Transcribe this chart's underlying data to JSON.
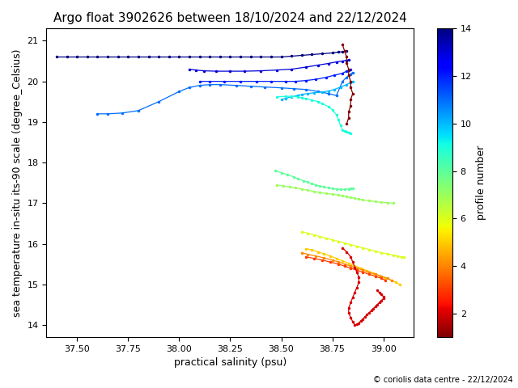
{
  "title": "Argo float 3902626 between 18/10/2024 and 22/12/2024",
  "xlabel": "practical salinity (psu)",
  "ylabel": "sea temperature in-situ its-90 scale (degree_Celsius)",
  "cbar_label": "profile number",
  "xlim": [
    37.35,
    39.15
  ],
  "ylim": [
    13.7,
    21.3
  ],
  "xticks": [
    37.5,
    37.75,
    38.0,
    38.25,
    38.5,
    38.75,
    39.0
  ],
  "yticks": [
    14,
    15,
    16,
    17,
    18,
    19,
    20,
    21
  ],
  "cbar_ticks": [
    2,
    4,
    6,
    8,
    10,
    12,
    14
  ],
  "clim": [
    1,
    14
  ],
  "cmap": "jet_r",
  "copyright": "© coriolis data centre - 22/12/2024",
  "profiles": [
    {
      "num": 14,
      "sal": [
        37.4,
        37.45,
        37.5,
        37.55,
        37.6,
        37.65,
        37.7,
        37.75,
        37.8,
        37.85,
        37.9,
        37.95,
        38.0,
        38.05,
        38.1,
        38.15,
        38.2,
        38.25,
        38.3,
        38.35,
        38.4,
        38.45,
        38.5,
        38.55,
        38.6,
        38.65,
        38.7,
        38.75,
        38.78,
        38.8,
        38.82
      ],
      "temp": [
        20.6,
        20.6,
        20.6,
        20.6,
        20.6,
        20.6,
        20.6,
        20.6,
        20.6,
        20.6,
        20.6,
        20.6,
        20.6,
        20.6,
        20.6,
        20.6,
        20.6,
        20.6,
        20.6,
        20.6,
        20.6,
        20.6,
        20.6,
        20.62,
        20.64,
        20.66,
        20.68,
        20.7,
        20.72,
        20.73,
        20.74
      ]
    },
    {
      "num": 13,
      "sal": [
        38.05,
        38.08,
        38.12,
        38.18,
        38.25,
        38.32,
        38.4,
        38.48,
        38.55,
        38.62,
        38.68,
        38.73,
        38.77,
        38.8,
        38.82,
        38.83
      ],
      "temp": [
        20.3,
        20.28,
        20.26,
        20.25,
        20.25,
        20.25,
        20.26,
        20.28,
        20.3,
        20.35,
        20.4,
        20.44,
        20.48,
        20.5,
        20.52,
        20.53
      ]
    },
    {
      "num": 12,
      "sal": [
        38.1,
        38.15,
        38.22,
        38.3,
        38.38,
        38.45,
        38.52,
        38.57,
        38.62,
        38.67,
        38.72,
        38.76,
        38.8,
        38.82,
        38.83,
        38.84
      ],
      "temp": [
        20.0,
        20.0,
        20.0,
        20.0,
        20.0,
        20.0,
        20.0,
        20.0,
        20.02,
        20.05,
        20.1,
        20.15,
        20.2,
        20.25,
        20.28,
        20.3
      ]
    },
    {
      "num": 11,
      "sal": [
        37.6,
        37.65,
        37.72,
        37.8,
        37.9,
        38.0,
        38.05,
        38.1,
        38.15,
        38.2,
        38.28,
        38.35,
        38.42,
        38.5,
        38.56,
        38.62,
        38.68,
        38.73,
        38.77,
        38.8,
        38.82,
        38.84,
        38.85
      ],
      "temp": [
        19.2,
        19.2,
        19.22,
        19.28,
        19.5,
        19.75,
        19.85,
        19.9,
        19.92,
        19.92,
        19.9,
        19.88,
        19.86,
        19.84,
        19.82,
        19.8,
        19.75,
        19.7,
        19.65,
        20.0,
        20.1,
        20.18,
        20.22
      ]
    },
    {
      "num": 10,
      "sal": [
        38.5,
        38.52,
        38.55,
        38.58,
        38.6,
        38.63,
        38.66,
        38.7,
        38.73,
        38.76,
        38.79,
        38.82,
        38.84,
        38.85
      ],
      "temp": [
        19.55,
        19.58,
        19.62,
        19.65,
        19.68,
        19.7,
        19.72,
        19.74,
        19.76,
        19.8,
        19.86,
        19.92,
        19.97,
        20.0
      ]
    },
    {
      "num": 9,
      "sal": [
        38.48,
        38.52,
        38.55,
        38.58,
        38.6,
        38.62,
        38.65,
        38.68,
        38.7,
        38.73,
        38.75,
        38.77,
        38.78,
        38.79,
        38.8,
        38.81,
        38.82,
        38.83,
        38.84
      ],
      "temp": [
        19.62,
        19.63,
        19.63,
        19.62,
        19.6,
        19.58,
        19.54,
        19.5,
        19.45,
        19.38,
        19.3,
        19.18,
        19.05,
        18.92,
        18.8,
        18.78,
        18.76,
        18.74,
        18.72
      ]
    },
    {
      "num": 8,
      "sal": [
        38.47,
        38.5,
        38.53,
        38.56,
        38.58,
        38.61,
        38.63,
        38.65,
        38.67,
        38.69,
        38.71,
        38.73,
        38.75,
        38.77,
        38.79,
        38.81,
        38.83,
        38.84,
        38.85
      ],
      "temp": [
        17.8,
        17.75,
        17.7,
        17.65,
        17.6,
        17.55,
        17.52,
        17.48,
        17.45,
        17.42,
        17.4,
        17.38,
        17.36,
        17.35,
        17.34,
        17.34,
        17.35,
        17.36,
        17.37
      ]
    },
    {
      "num": 7,
      "sal": [
        38.48,
        38.51,
        38.54,
        38.57,
        38.6,
        38.63,
        38.66,
        38.69,
        38.72,
        38.75,
        38.78,
        38.8,
        38.82,
        38.84,
        38.86,
        38.88,
        38.9,
        38.93,
        38.96,
        38.99,
        39.02,
        39.05
      ],
      "temp": [
        17.45,
        17.42,
        17.4,
        17.38,
        17.35,
        17.32,
        17.29,
        17.26,
        17.24,
        17.22,
        17.2,
        17.18,
        17.16,
        17.14,
        17.12,
        17.1,
        17.08,
        17.06,
        17.04,
        17.02,
        17.01,
        17.0
      ]
    },
    {
      "num": 6,
      "sal": [
        38.6,
        38.63,
        38.66,
        38.69,
        38.72,
        38.75,
        38.78,
        38.81,
        38.84,
        38.87,
        38.9,
        38.93,
        38.96,
        38.99,
        39.02,
        39.05,
        39.07,
        39.09,
        39.1
      ],
      "temp": [
        16.3,
        16.26,
        16.22,
        16.18,
        16.14,
        16.1,
        16.06,
        16.02,
        15.98,
        15.94,
        15.9,
        15.86,
        15.82,
        15.78,
        15.75,
        15.72,
        15.7,
        15.68,
        15.67
      ]
    },
    {
      "num": 5,
      "sal": [
        38.62,
        38.65,
        38.68,
        38.71,
        38.74,
        38.77,
        38.8,
        38.83,
        38.86,
        38.89,
        38.92,
        38.95,
        38.98,
        39.01,
        39.04,
        39.06,
        39.08
      ],
      "temp": [
        15.88,
        15.85,
        15.8,
        15.75,
        15.7,
        15.64,
        15.58,
        15.52,
        15.46,
        15.4,
        15.34,
        15.28,
        15.22,
        15.16,
        15.1,
        15.05,
        15.0
      ]
    },
    {
      "num": 4,
      "sal": [
        38.6,
        38.63,
        38.67,
        38.71,
        38.75,
        38.78,
        38.81,
        38.84,
        38.87,
        38.9,
        38.93,
        38.96,
        38.99,
        39.02,
        39.04
      ],
      "temp": [
        15.78,
        15.74,
        15.7,
        15.65,
        15.6,
        15.55,
        15.5,
        15.45,
        15.4,
        15.35,
        15.3,
        15.25,
        15.2,
        15.15,
        15.1
      ]
    },
    {
      "num": 3,
      "sal": [
        38.62,
        38.66,
        38.7,
        38.74,
        38.78,
        38.81,
        38.84,
        38.87,
        38.9,
        38.93,
        38.96,
        38.99,
        39.01
      ],
      "temp": [
        15.68,
        15.64,
        15.6,
        15.55,
        15.5,
        15.45,
        15.4,
        15.35,
        15.3,
        15.25,
        15.2,
        15.15,
        15.1
      ]
    },
    {
      "num": 2,
      "sal": [
        38.8,
        38.82,
        38.84,
        38.85,
        38.86,
        38.87,
        38.88,
        38.88,
        38.87,
        38.86,
        38.85,
        38.84,
        38.83,
        38.83,
        38.84,
        38.85,
        38.86,
        38.87,
        38.88,
        38.89,
        38.9,
        38.91,
        38.92,
        38.93,
        38.94,
        38.95,
        38.96,
        38.97,
        38.98,
        38.99,
        39.0,
        39.0,
        38.99,
        38.98,
        38.97
      ],
      "temp": [
        15.9,
        15.8,
        15.68,
        15.55,
        15.42,
        15.3,
        15.18,
        15.05,
        14.92,
        14.8,
        14.68,
        14.55,
        14.42,
        14.3,
        14.18,
        14.08,
        14.0,
        14.02,
        14.05,
        14.1,
        14.15,
        14.2,
        14.25,
        14.3,
        14.35,
        14.4,
        14.45,
        14.5,
        14.55,
        14.6,
        14.65,
        14.7,
        14.75,
        14.8,
        14.85
      ]
    },
    {
      "num": 1,
      "sal": [
        38.8,
        38.81,
        38.82,
        38.82,
        38.83,
        38.83,
        38.84,
        38.84,
        38.85,
        38.84,
        38.84,
        38.83,
        38.83,
        38.82
      ],
      "temp": [
        20.9,
        20.75,
        20.6,
        20.45,
        20.3,
        20.15,
        20.0,
        19.85,
        19.7,
        19.55,
        19.4,
        19.25,
        19.1,
        18.95
      ]
    }
  ]
}
